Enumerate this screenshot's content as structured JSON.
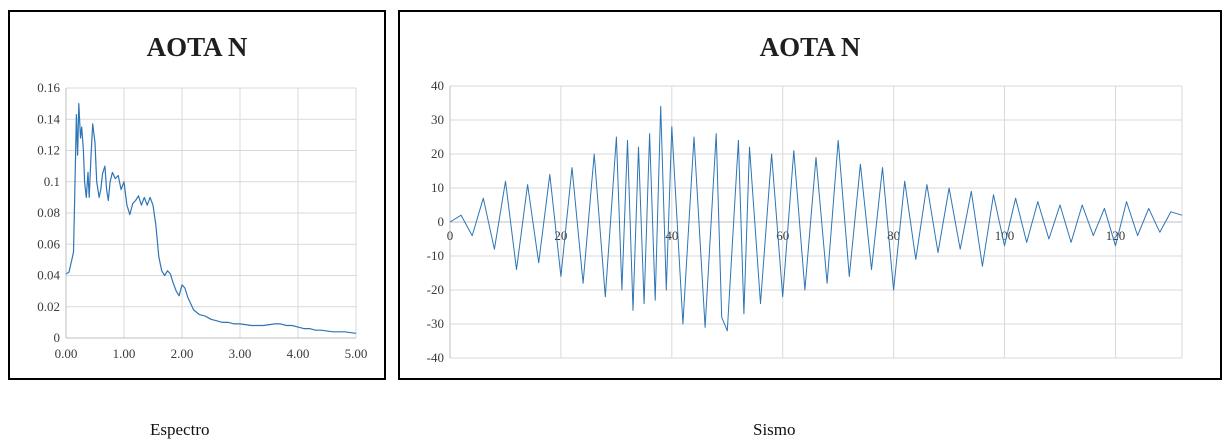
{
  "captions": {
    "left": "Espectro",
    "right": "Sismo"
  },
  "chart_data": [
    {
      "type": "line",
      "title": "AOTA N",
      "xlabel": "",
      "ylabel": "",
      "xlim": [
        0,
        5
      ],
      "ylim": [
        0,
        0.16
      ],
      "xticks": [
        "0.00",
        "1.00",
        "2.00",
        "3.00",
        "4.00",
        "5.00"
      ],
      "yticks": [
        "0",
        "0.02",
        "0.04",
        "0.06",
        "0.08",
        "0.1",
        "0.12",
        "0.14",
        "0.16"
      ],
      "grid": true,
      "series_color": "#2e75b6",
      "x": [
        0.0,
        0.05,
        0.1,
        0.13,
        0.15,
        0.18,
        0.2,
        0.22,
        0.25,
        0.27,
        0.3,
        0.32,
        0.35,
        0.38,
        0.4,
        0.43,
        0.46,
        0.5,
        0.53,
        0.57,
        0.6,
        0.63,
        0.67,
        0.7,
        0.73,
        0.76,
        0.8,
        0.85,
        0.9,
        0.95,
        1.0,
        1.05,
        1.1,
        1.15,
        1.2,
        1.25,
        1.3,
        1.35,
        1.4,
        1.45,
        1.5,
        1.55,
        1.6,
        1.65,
        1.7,
        1.75,
        1.8,
        1.85,
        1.9,
        1.95,
        2.0,
        2.05,
        2.1,
        2.15,
        2.2,
        2.3,
        2.4,
        2.45,
        2.5,
        2.6,
        2.7,
        2.8,
        2.9,
        3.0,
        3.2,
        3.4,
        3.6,
        3.7,
        3.8,
        3.9,
        4.0,
        4.1,
        4.2,
        4.3,
        4.4,
        4.6,
        4.8,
        5.0
      ],
      "y": [
        0.041,
        0.042,
        0.05,
        0.055,
        0.09,
        0.143,
        0.117,
        0.15,
        0.128,
        0.135,
        0.12,
        0.1,
        0.09,
        0.106,
        0.09,
        0.115,
        0.137,
        0.125,
        0.1,
        0.09,
        0.095,
        0.105,
        0.11,
        0.095,
        0.088,
        0.1,
        0.106,
        0.102,
        0.104,
        0.095,
        0.1,
        0.085,
        0.079,
        0.086,
        0.088,
        0.091,
        0.085,
        0.09,
        0.085,
        0.09,
        0.085,
        0.072,
        0.052,
        0.043,
        0.04,
        0.043,
        0.041,
        0.035,
        0.03,
        0.027,
        0.034,
        0.032,
        0.026,
        0.022,
        0.018,
        0.015,
        0.014,
        0.013,
        0.012,
        0.011,
        0.01,
        0.01,
        0.009,
        0.009,
        0.008,
        0.008,
        0.009,
        0.009,
        0.008,
        0.008,
        0.007,
        0.006,
        0.006,
        0.005,
        0.005,
        0.004,
        0.004,
        0.003
      ]
    },
    {
      "type": "line",
      "title": "AOTA N",
      "xlabel": "",
      "ylabel": "",
      "xlim": [
        0,
        132
      ],
      "ylim": [
        -40,
        40
      ],
      "xticks": [
        "0",
        "20",
        "40",
        "60",
        "80",
        "100",
        "120"
      ],
      "yticks": [
        "-40",
        "-30",
        "-20",
        "-10",
        "0",
        "10",
        "20",
        "30",
        "40"
      ],
      "grid": true,
      "series_color": "#2e75b6",
      "x": [
        0,
        2,
        4,
        6,
        8,
        10,
        12,
        14,
        16,
        18,
        20,
        22,
        24,
        26,
        28,
        30,
        31,
        32,
        33,
        34,
        35,
        36,
        37,
        38,
        39,
        40,
        42,
        44,
        46,
        48,
        49,
        50,
        52,
        53,
        54,
        56,
        58,
        60,
        62,
        64,
        66,
        68,
        70,
        72,
        74,
        76,
        78,
        80,
        82,
        84,
        86,
        88,
        90,
        92,
        94,
        96,
        98,
        100,
        102,
        104,
        106,
        108,
        110,
        112,
        114,
        116,
        118,
        120,
        122,
        124,
        126,
        128,
        130,
        132
      ],
      "y": [
        0,
        2,
        -4,
        7,
        -8,
        12,
        -14,
        11,
        -12,
        14,
        -16,
        16,
        -18,
        20,
        -22,
        25,
        -20,
        24,
        -26,
        22,
        -24,
        26,
        -23,
        34,
        -20,
        28,
        -30,
        25,
        -31,
        26,
        -28,
        -32,
        24,
        -27,
        22,
        -24,
        20,
        -22,
        21,
        -20,
        19,
        -18,
        24,
        -16,
        17,
        -14,
        16,
        -20,
        12,
        -11,
        11,
        -9,
        10,
        -8,
        9,
        -13,
        8,
        -7,
        7,
        -6,
        6,
        -5,
        5,
        -6,
        5,
        -4,
        4,
        -7,
        6,
        -4,
        4,
        -3,
        3,
        2
      ]
    }
  ]
}
